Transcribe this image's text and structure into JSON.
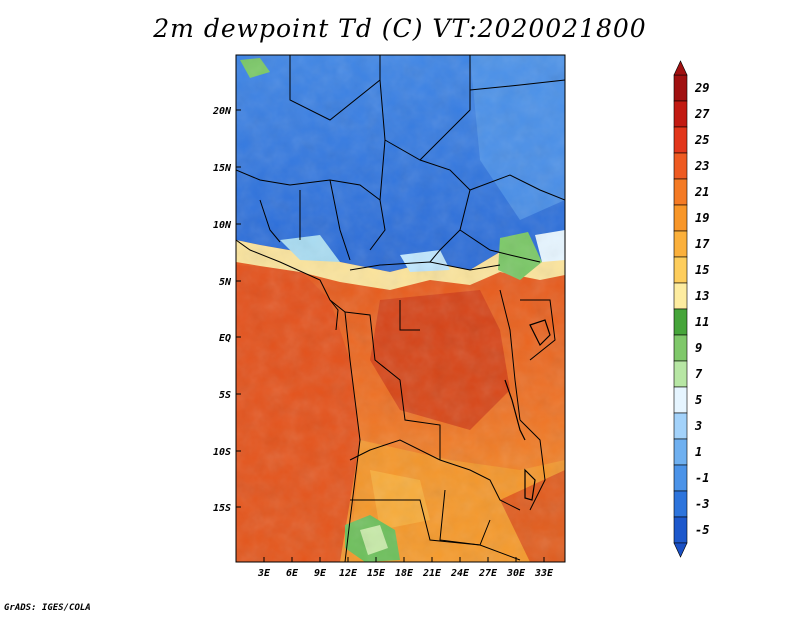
{
  "title": "2m dewpoint Td (C) VT:2020021800",
  "credit": "GrADS: IGES/COLA",
  "map": {
    "lon_range": [
      0,
      35
    ],
    "lat_range": [
      -20,
      25
    ],
    "lon_ticks": [
      "3E",
      "6E",
      "9E",
      "12E",
      "15E",
      "18E",
      "21E",
      "24E",
      "27E",
      "30E",
      "33E"
    ],
    "lat_ticks": [
      "20N",
      "15N",
      "10N",
      "5N",
      "EQ",
      "5S",
      "10S",
      "15S"
    ],
    "colors": {
      "dry": "#3a7ee0",
      "moist_mid": "#f7a43a",
      "moist_high": "#e8561c",
      "very_high": "#cf3a16"
    }
  },
  "colorbar": {
    "labels": [
      "29",
      "27",
      "25",
      "23",
      "21",
      "19",
      "17",
      "15",
      "13",
      "11",
      "9",
      "7",
      "5",
      "3",
      "1",
      "-1",
      "-3",
      "-5"
    ],
    "colors": [
      "#a01010",
      "#c21a12",
      "#e2361b",
      "#ee5a21",
      "#f47a24",
      "#f89628",
      "#fbb03b",
      "#fdcd5c",
      "#fdeca0",
      "#46a53a",
      "#7fc86a",
      "#b7e6a4",
      "#e6f5ff",
      "#a3d2fa",
      "#6fb0f0",
      "#4b93e8",
      "#2d74dc",
      "#1d58cc"
    ]
  }
}
